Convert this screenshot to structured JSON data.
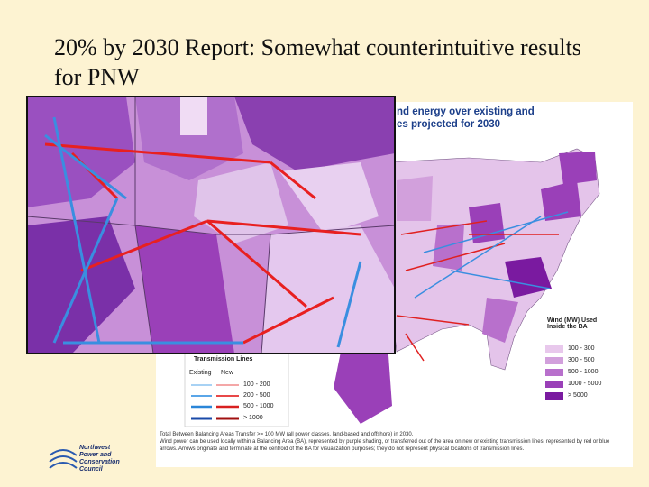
{
  "slide": {
    "title": "20% by 2030 Report: Somewhat counterintuitive results for PNW"
  },
  "map": {
    "heading": [
      "nd energy over existing and",
      "es projected for 2030"
    ],
    "wind_legend": {
      "title": "Wind (MW) Used Inside the BA",
      "items": [
        "100 - 300",
        "300 - 500",
        "500 - 1000",
        "1000 - 5000",
        "> 5000"
      ]
    },
    "transmission_legend": {
      "title": "Transmission Lines",
      "columns": [
        "Existing",
        "New"
      ],
      "items": [
        "100 - 200",
        "200 - 500",
        "500 - 1000",
        "> 1000"
      ]
    },
    "footnote": [
      "Total Between Balancing Areas Transfer >= 100 MW (all power classes, land-based and offshore) in 2030.",
      "Wind power can be used locally within a Balancing Area (BA), represented by purple shading, or transferred out of the area on new or existing transmission lines, represented by red or blue arrows. Arrows originate and terminate at the centroid of the BA for visualization purposes; they do not represent physical locations of transmission lines."
    ]
  },
  "logo": {
    "lines": [
      "Northwest",
      "Power and",
      "Conservation",
      "Council"
    ]
  }
}
